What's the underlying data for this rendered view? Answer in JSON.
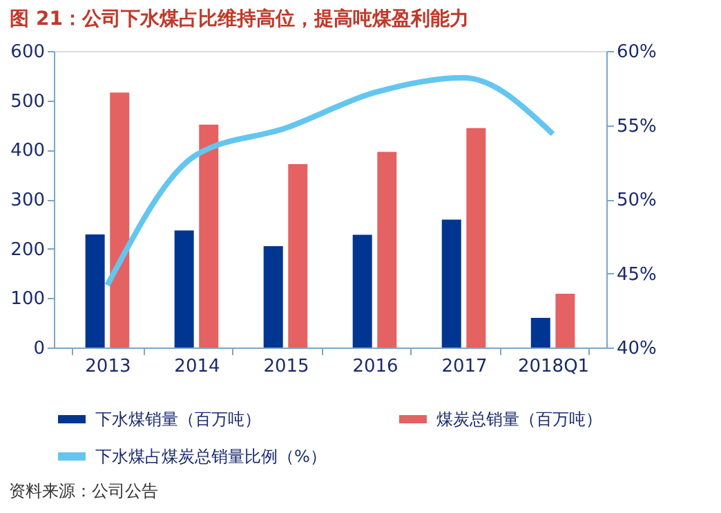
{
  "chart_data": {
    "type": "bar",
    "title": "图 21：公司下水煤占比维持高位，提高吨煤盈利能力",
    "categories": [
      "2013",
      "2014",
      "2015",
      "2016",
      "2017",
      "2018Q1"
    ],
    "series": [
      {
        "name": "下水煤销量（百万吨）",
        "color": "#003591",
        "values": [
          229,
          237,
          205,
          228,
          259,
          60
        ]
      },
      {
        "name": "煤炭总销量（百万吨）",
        "color": "#e46262",
        "values": [
          516,
          451,
          371,
          396,
          444,
          109
        ]
      },
      {
        "name": "下水煤占煤炭总销量比例（%）",
        "color": "#64c6ef",
        "type": "line",
        "axis": "y2",
        "values": [
          44.2,
          53.0,
          54.8,
          57.2,
          58.2,
          54.4
        ]
      }
    ],
    "ylim": [
      0,
      600
    ],
    "yticks": [
      0,
      100,
      200,
      300,
      400,
      500,
      600
    ],
    "y2lim": [
      40,
      60
    ],
    "y2ticks": [
      {
        "value": 40,
        "label": "40%"
      },
      {
        "value": 45,
        "label": "45%"
      },
      {
        "value": 50,
        "label": "50%"
      },
      {
        "value": 55,
        "label": "55%"
      },
      {
        "value": 60,
        "label": "60%"
      }
    ],
    "grid": false,
    "legend": "bottom",
    "annotations": [
      "资料来源：公司公告"
    ]
  }
}
